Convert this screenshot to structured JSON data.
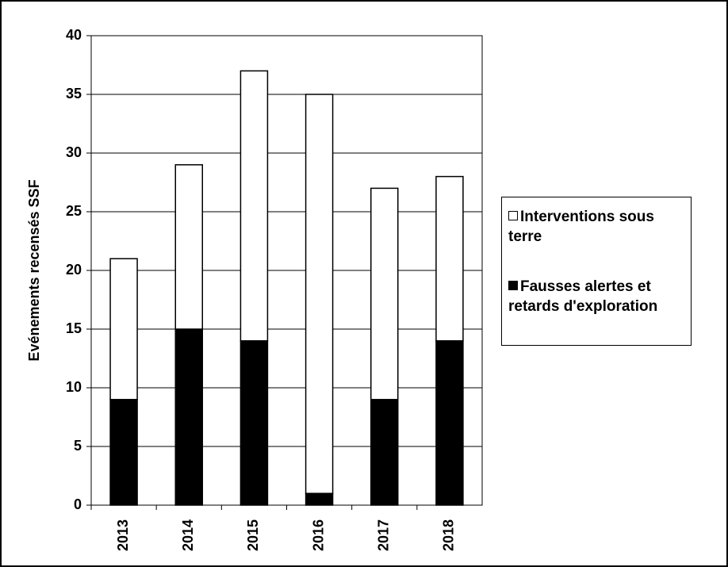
{
  "chart_data": {
    "type": "stacked_bar",
    "y_label": "Evénements recensés SSF",
    "categories": [
      "2013",
      "2014",
      "2015",
      "2016",
      "2017",
      "2018"
    ],
    "series": [
      {
        "name": "Interventions sous terre",
        "color": "#ffffff",
        "values": [
          12,
          14,
          23,
          34,
          18,
          14
        ]
      },
      {
        "name": "Fausses alertes et retards d'exploration",
        "color": "#000000",
        "values": [
          9,
          15,
          14,
          1,
          9,
          14
        ]
      }
    ],
    "ylim": [
      0,
      40
    ],
    "yticks": [
      0,
      5,
      10,
      15,
      20,
      25,
      30,
      35,
      40
    ],
    "grid": true
  }
}
